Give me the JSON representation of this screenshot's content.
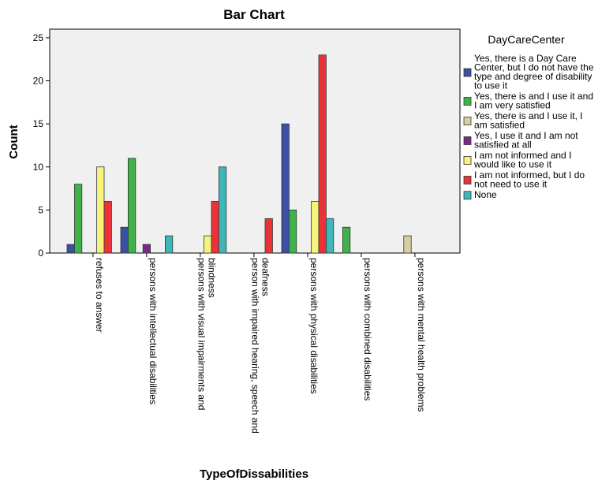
{
  "chart_data": {
    "type": "bar",
    "title": "Bar Chart",
    "xlabel": "TypeOfDissabilities",
    "ylabel": "Count",
    "ylim": [
      0,
      26
    ],
    "yticks": [
      0,
      5,
      10,
      15,
      20,
      25
    ],
    "grid": false,
    "legend_position": "right",
    "legend_title": "DayCareCenter",
    "categories": [
      "refuses to answer",
      "persons with intellectual disabilities",
      "persons with visual impairments and blindness",
      "person with impaired hearing, speech and deafness",
      "persons with physical disabilities",
      "persons with combined disabilities",
      "persons with mental health problems"
    ],
    "series": [
      {
        "name": "Yes, there is a Day Care Center, but I do not have the type and degree of disability to use it",
        "color": "#3c4fa3",
        "values": [
          1,
          3,
          0,
          0,
          15,
          0,
          0
        ]
      },
      {
        "name": "Yes, there is and I use it and I am very satisfied",
        "color": "#3fb24a",
        "values": [
          8,
          11,
          0,
          0,
          5,
          3,
          0
        ]
      },
      {
        "name": "Yes, there is and I use it, I am  satisfied",
        "color": "#d8cfa0",
        "values": [
          0,
          0,
          0,
          0,
          0,
          0,
          2
        ]
      },
      {
        "name": "Yes, I use it and I am not satisfied at all",
        "color": "#7a2a86",
        "values": [
          0,
          1,
          0,
          0,
          0,
          0,
          0
        ]
      },
      {
        "name": "I am not informed and I would like to use it",
        "color": "#f6f478",
        "values": [
          10,
          0,
          2,
          0,
          6,
          0,
          0
        ]
      },
      {
        "name": "I am not informed, but I do not need to use it",
        "color": "#ec3239",
        "values": [
          6,
          0,
          6,
          4,
          23,
          0,
          0
        ]
      },
      {
        "name": "None",
        "color": "#3fb7b9",
        "values": [
          0,
          2,
          10,
          0,
          4,
          0,
          0
        ]
      }
    ],
    "legend_lines": [
      [
        "Yes, there is a Day Care",
        "Center, but I do not have the",
        "type and degree of disability",
        "to use it"
      ],
      [
        "Yes, there is and I use it and",
        "I am very satisfied"
      ],
      [
        "Yes, there is and I use it, I",
        "am  satisfied"
      ],
      [
        "Yes, I use it and I am not",
        "satisfied at all"
      ],
      [
        "I am not informed and I",
        "would like to use it"
      ],
      [
        "I am not informed, but I do",
        "not need to use it"
      ],
      [
        "None"
      ]
    ],
    "category_lines": [
      [
        "refuses to answer"
      ],
      [
        "persons with intellectual disabilities"
      ],
      [
        "persons with visual impairments and",
        "blindness"
      ],
      [
        "person with impaired hearing, speech and",
        "deafness"
      ],
      [
        "persons with physical disabilities"
      ],
      [
        "persons with combined disabilities"
      ],
      [
        "persons with mental health problems"
      ]
    ],
    "plot_background": "#f0f0f0"
  }
}
